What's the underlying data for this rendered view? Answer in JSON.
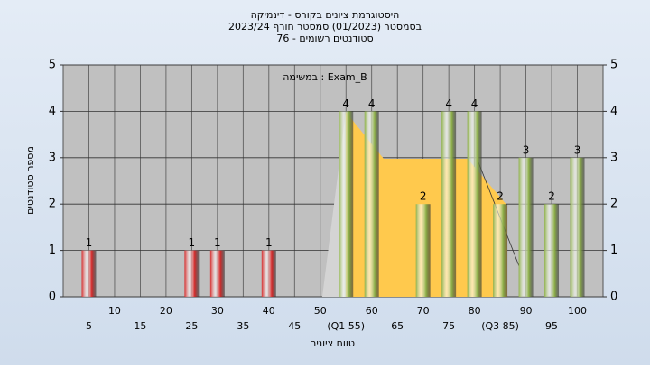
{
  "chart_data": {
    "type": "bar",
    "title": "היסטוגרמת ציונים בקורס - דינמיקה",
    "subtitle": "בסמסטר  (01/2023)  סמסטר חורף  2023/24",
    "subtitle2": "סטודנטים רשומים - 76",
    "annotation": "במשימה : Exam_B",
    "ylabel": "מספר סטודנטים",
    "xlabel": "טווח ציונים",
    "categories": [
      "5",
      "10",
      "15",
      "20",
      "25",
      "30",
      "35",
      "40",
      "45",
      "50",
      "(Q1 55)",
      "60",
      "65",
      "70",
      "75",
      "80",
      "(Q3 85)",
      "90",
      "95",
      "100"
    ],
    "values": [
      1,
      0,
      0,
      0,
      1,
      1,
      0,
      1,
      0,
      0,
      4,
      4,
      0,
      2,
      4,
      4,
      2,
      3,
      2,
      3
    ],
    "colors": [
      "#d42a2a",
      "#d42a2a",
      "#d42a2a",
      "#d42a2a",
      "#d42a2a",
      "#d42a2a",
      "#d42a2a",
      "#d42a2a",
      "#d42a2a",
      "#d42a2a",
      "#8db048",
      "#8db048",
      "#8db048",
      "#8db048",
      "#8db048",
      "#8db048",
      "#8db048",
      "#8db048",
      "#8db048",
      "#8db048"
    ],
    "ylim": [
      0,
      5
    ],
    "yticks": [
      0,
      1,
      2,
      3,
      4,
      5
    ],
    "grid": true
  }
}
